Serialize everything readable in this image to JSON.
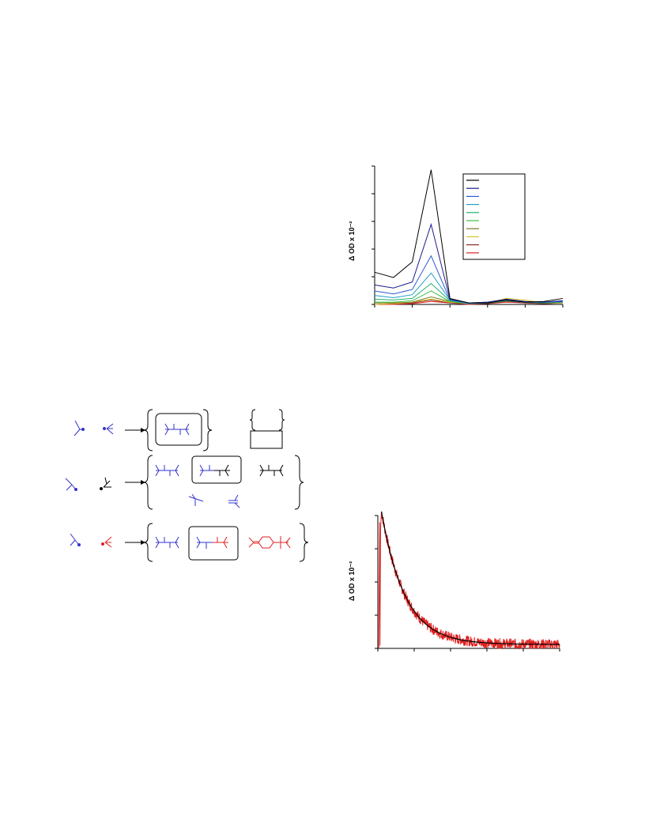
{
  "chart_data": [
    {
      "type": "line",
      "ylabel": "Δ OD x 10⁻²",
      "x": [
        0,
        1,
        2,
        3,
        4,
        5,
        6,
        7,
        8,
        9,
        10
      ],
      "series": [
        {
          "color": "#000000",
          "values": [
            43,
            36,
            57,
            180,
            8,
            2,
            2,
            6,
            3,
            4,
            8
          ]
        },
        {
          "color": "#1a1a8c",
          "values": [
            26,
            22,
            30,
            107,
            7,
            2,
            3,
            7,
            4,
            3,
            5
          ]
        },
        {
          "color": "#2e5bd6",
          "values": [
            18,
            14,
            20,
            65,
            6,
            2,
            3,
            6,
            3,
            3,
            4
          ]
        },
        {
          "color": "#1fa0c8",
          "values": [
            12,
            9,
            13,
            42,
            6,
            1,
            2,
            6,
            3,
            3,
            4
          ]
        },
        {
          "color": "#20b070",
          "values": [
            7,
            6,
            8,
            28,
            5,
            1,
            2,
            5,
            3,
            2,
            3
          ]
        },
        {
          "color": "#3cc03c",
          "values": [
            3,
            3,
            5,
            18,
            4,
            1,
            2,
            5,
            3,
            2,
            3
          ]
        },
        {
          "color": "#7a7a20",
          "values": [
            2,
            2,
            3,
            10,
            4,
            1,
            2,
            6,
            3,
            2,
            3
          ]
        },
        {
          "color": "#d4c42a",
          "values": [
            0,
            1,
            3,
            7,
            3,
            1,
            2,
            8,
            6,
            2,
            2
          ]
        },
        {
          "color": "#8b2a2a",
          "values": [
            0,
            1,
            2,
            6,
            2,
            1,
            1,
            4,
            2,
            1,
            2
          ]
        },
        {
          "color": "#e02020",
          "values": [
            0,
            0,
            1,
            4,
            2,
            0,
            1,
            3,
            2,
            1,
            2
          ]
        }
      ],
      "ylim": [
        0,
        185
      ],
      "legend": "top-right"
    },
    {
      "type": "line",
      "ylabel": "Δ OD x 10⁻²",
      "decay": {
        "amplitude": 100,
        "tau": 0.13,
        "baseline": 3,
        "noise": 4
      },
      "ylim": [
        0,
        100
      ],
      "xlim": [
        0,
        1
      ]
    }
  ],
  "colors": {
    "blue": "#3333cc",
    "red": "#e02020",
    "black": "#000000"
  }
}
